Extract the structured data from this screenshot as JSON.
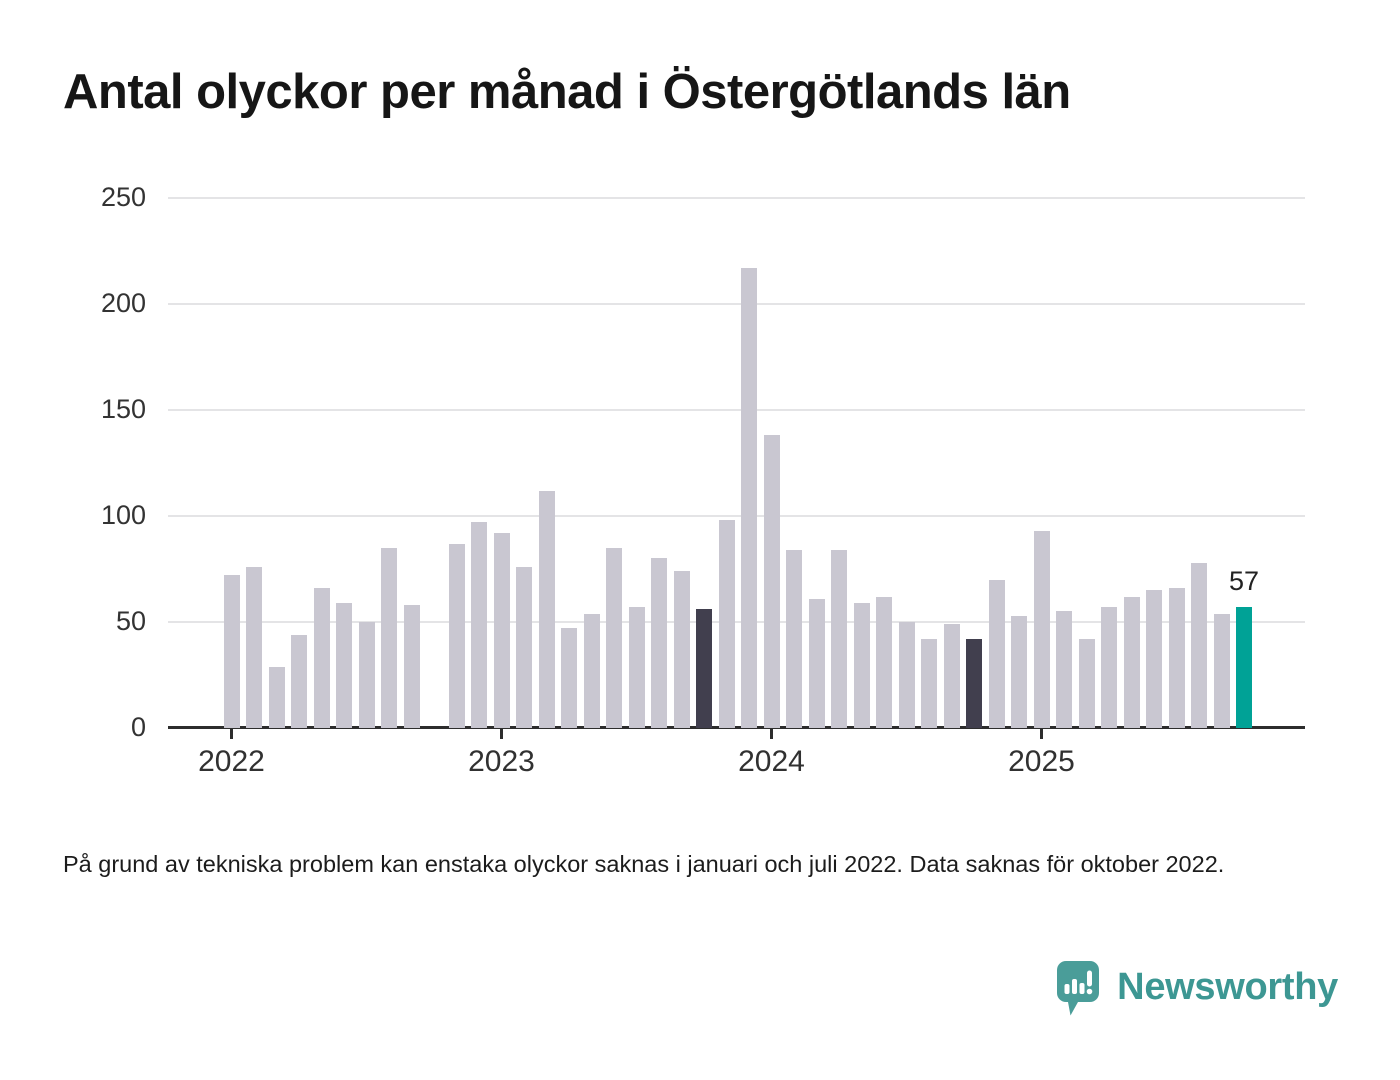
{
  "page": {
    "background": "#ffffff"
  },
  "title": "Antal olyckor per månad i Östergötlands län",
  "footnote": "På grund av tekniska problem kan enstaka olyckor saknas i januari och juli 2022. Data saknas för oktober 2022.",
  "branding": {
    "name": "Newsworthy",
    "icon": "newsworthy-speech-bubble-chart-icon",
    "text_color": "#3d9793",
    "icon_color": "#4a9d99"
  },
  "chart_data": {
    "type": "bar",
    "title": "Antal olyckor per månad i Östergötlands län",
    "xlabel": "",
    "ylabel": "",
    "ylim": [
      0,
      250
    ],
    "y_ticks": [
      0,
      50,
      100,
      150,
      200,
      250
    ],
    "grid": "horizontal",
    "legend": "none",
    "colors": {
      "default": "#c9c7d1",
      "reference": "#413f4e",
      "latest": "#00a296",
      "gridline": "#e4e4e6",
      "axis": "#2d2d2d"
    },
    "x_year_labels": [
      {
        "label": "2022",
        "month_index": 0
      },
      {
        "label": "2023",
        "month_index": 12
      },
      {
        "label": "2024",
        "month_index": 24
      },
      {
        "label": "2025",
        "month_index": 36
      }
    ],
    "missing_months": [
      "2022-10"
    ],
    "annotation": {
      "text": "57",
      "month": "2025-10"
    },
    "points": [
      {
        "month": "2022-01",
        "value": 72,
        "kind": "default"
      },
      {
        "month": "2022-02",
        "value": 76,
        "kind": "default"
      },
      {
        "month": "2022-03",
        "value": 29,
        "kind": "default"
      },
      {
        "month": "2022-04",
        "value": 44,
        "kind": "default"
      },
      {
        "month": "2022-05",
        "value": 66,
        "kind": "default"
      },
      {
        "month": "2022-06",
        "value": 59,
        "kind": "default"
      },
      {
        "month": "2022-07",
        "value": 50,
        "kind": "default"
      },
      {
        "month": "2022-08",
        "value": 85,
        "kind": "default"
      },
      {
        "month": "2022-09",
        "value": 58,
        "kind": "default"
      },
      {
        "month": "2022-10",
        "value": null,
        "kind": "missing"
      },
      {
        "month": "2022-11",
        "value": 87,
        "kind": "default"
      },
      {
        "month": "2022-12",
        "value": 97,
        "kind": "default"
      },
      {
        "month": "2023-01",
        "value": 92,
        "kind": "default"
      },
      {
        "month": "2023-02",
        "value": 76,
        "kind": "default"
      },
      {
        "month": "2023-03",
        "value": 112,
        "kind": "default"
      },
      {
        "month": "2023-04",
        "value": 47,
        "kind": "default"
      },
      {
        "month": "2023-05",
        "value": 54,
        "kind": "default"
      },
      {
        "month": "2023-06",
        "value": 85,
        "kind": "default"
      },
      {
        "month": "2023-07",
        "value": 57,
        "kind": "default"
      },
      {
        "month": "2023-08",
        "value": 80,
        "kind": "default"
      },
      {
        "month": "2023-09",
        "value": 74,
        "kind": "default"
      },
      {
        "month": "2023-10",
        "value": 56,
        "kind": "reference"
      },
      {
        "month": "2023-11",
        "value": 98,
        "kind": "default"
      },
      {
        "month": "2023-12",
        "value": 217,
        "kind": "default"
      },
      {
        "month": "2024-01",
        "value": 138,
        "kind": "default"
      },
      {
        "month": "2024-02",
        "value": 84,
        "kind": "default"
      },
      {
        "month": "2024-03",
        "value": 61,
        "kind": "default"
      },
      {
        "month": "2024-04",
        "value": 84,
        "kind": "default"
      },
      {
        "month": "2024-05",
        "value": 59,
        "kind": "default"
      },
      {
        "month": "2024-06",
        "value": 62,
        "kind": "default"
      },
      {
        "month": "2024-07",
        "value": 50,
        "kind": "default"
      },
      {
        "month": "2024-08",
        "value": 42,
        "kind": "default"
      },
      {
        "month": "2024-09",
        "value": 49,
        "kind": "default"
      },
      {
        "month": "2024-10",
        "value": 42,
        "kind": "reference"
      },
      {
        "month": "2024-11",
        "value": 70,
        "kind": "default"
      },
      {
        "month": "2024-12",
        "value": 53,
        "kind": "default"
      },
      {
        "month": "2025-01",
        "value": 93,
        "kind": "default"
      },
      {
        "month": "2025-02",
        "value": 55,
        "kind": "default"
      },
      {
        "month": "2025-03",
        "value": 42,
        "kind": "default"
      },
      {
        "month": "2025-04",
        "value": 57,
        "kind": "default"
      },
      {
        "month": "2025-05",
        "value": 62,
        "kind": "default"
      },
      {
        "month": "2025-06",
        "value": 65,
        "kind": "default"
      },
      {
        "month": "2025-07",
        "value": 66,
        "kind": "default"
      },
      {
        "month": "2025-08",
        "value": 78,
        "kind": "default"
      },
      {
        "month": "2025-09",
        "value": 54,
        "kind": "default"
      },
      {
        "month": "2025-10",
        "value": 57,
        "kind": "latest"
      }
    ]
  }
}
